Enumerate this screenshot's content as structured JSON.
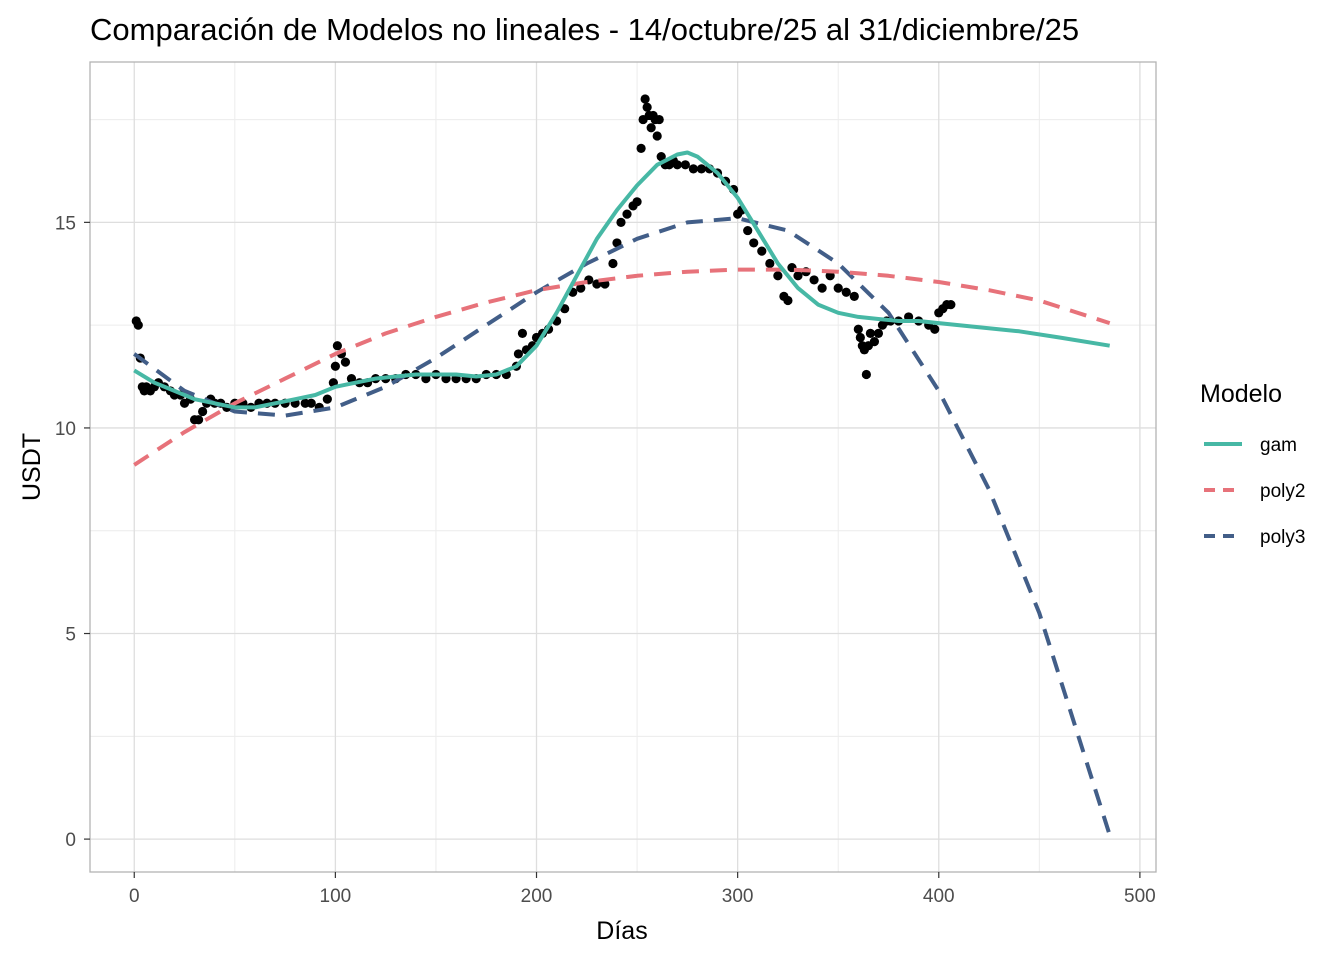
{
  "chart_data": {
    "type": "scatter",
    "title": "Comparación de Modelos no lineales - 14/octubre/25 al 31/diciembre/25",
    "xlabel": "Días",
    "ylabel": "USDT",
    "xlim": [
      -22,
      508
    ],
    "ylim": [
      -0.8,
      18.9
    ],
    "x_ticks": [
      0,
      100,
      200,
      300,
      400,
      500
    ],
    "y_ticks": [
      0,
      5,
      10,
      15
    ],
    "x_tick_labels": [
      "0",
      "100",
      "200",
      "300",
      "400",
      "500"
    ],
    "y_tick_labels": [
      "0",
      "5",
      "10",
      "15"
    ],
    "grid": true,
    "legend": {
      "title": "Modelo",
      "position": "right"
    },
    "points": {
      "color": "#000000",
      "x": [
        1,
        2,
        3,
        4,
        5,
        6,
        8,
        10,
        12,
        15,
        18,
        20,
        23,
        25,
        28,
        30,
        32,
        34,
        36,
        38,
        40,
        43,
        46,
        50,
        54,
        58,
        62,
        66,
        70,
        75,
        80,
        85,
        88,
        92,
        96,
        99,
        100,
        101,
        103,
        105,
        108,
        112,
        116,
        120,
        125,
        130,
        135,
        140,
        145,
        150,
        155,
        160,
        165,
        170,
        175,
        180,
        185,
        190,
        191,
        193,
        195,
        198,
        200,
        203,
        206,
        210,
        214,
        218,
        222,
        226,
        230,
        234,
        238,
        240,
        242,
        245,
        248,
        250,
        252,
        253,
        254,
        255,
        256,
        257,
        258,
        259,
        260,
        261,
        262,
        264,
        266,
        268,
        270,
        274,
        278,
        282,
        286,
        290,
        294,
        298,
        300,
        302,
        305,
        308,
        312,
        316,
        320,
        323,
        325,
        327,
        330,
        334,
        338,
        342,
        346,
        350,
        354,
        358,
        360,
        361,
        362,
        363,
        364,
        365,
        366,
        368,
        370,
        372,
        374,
        376,
        380,
        385,
        390,
        395,
        398,
        400,
        402,
        404,
        406
      ],
      "y": [
        12.6,
        12.5,
        11.7,
        11.0,
        10.9,
        11.0,
        10.9,
        11.0,
        11.1,
        11.0,
        10.9,
        10.8,
        10.8,
        10.6,
        10.7,
        10.2,
        10.2,
        10.4,
        10.6,
        10.7,
        10.6,
        10.6,
        10.5,
        10.6,
        10.6,
        10.5,
        10.6,
        10.6,
        10.6,
        10.6,
        10.6,
        10.6,
        10.6,
        10.5,
        10.7,
        11.1,
        11.5,
        12.0,
        11.8,
        11.6,
        11.2,
        11.1,
        11.1,
        11.2,
        11.2,
        11.2,
        11.3,
        11.3,
        11.2,
        11.3,
        11.2,
        11.2,
        11.2,
        11.2,
        11.3,
        11.3,
        11.3,
        11.5,
        11.8,
        12.3,
        11.9,
        12.0,
        12.2,
        12.3,
        12.4,
        12.6,
        12.9,
        13.3,
        13.4,
        13.6,
        13.5,
        13.5,
        14.0,
        14.5,
        15.0,
        15.2,
        15.4,
        15.5,
        16.8,
        17.5,
        18.0,
        17.8,
        17.6,
        17.3,
        17.6,
        17.5,
        17.1,
        17.5,
        16.6,
        16.4,
        16.4,
        16.5,
        16.4,
        16.4,
        16.3,
        16.3,
        16.3,
        16.2,
        16.0,
        15.8,
        15.2,
        15.3,
        14.8,
        14.5,
        14.3,
        14.0,
        13.7,
        13.2,
        13.1,
        13.9,
        13.7,
        13.8,
        13.6,
        13.4,
        13.7,
        13.4,
        13.3,
        13.2,
        12.4,
        12.2,
        12.0,
        11.9,
        11.3,
        12.0,
        12.3,
        12.1,
        12.3,
        12.5,
        12.6,
        12.6,
        12.6,
        12.7,
        12.6,
        12.5,
        12.4,
        12.8,
        12.9,
        13.0,
        13.0
      ]
    },
    "series": [
      {
        "name": "gam",
        "color": "#47b8a5",
        "dash": "solid",
        "x": [
          0,
          10,
          20,
          30,
          40,
          50,
          60,
          70,
          80,
          90,
          100,
          110,
          120,
          130,
          140,
          150,
          160,
          170,
          180,
          190,
          200,
          210,
          220,
          230,
          240,
          250,
          260,
          270,
          275,
          280,
          290,
          300,
          310,
          320,
          330,
          340,
          350,
          360,
          370,
          380,
          390,
          400,
          420,
          440,
          460,
          485
        ],
        "y": [
          11.4,
          11.1,
          10.9,
          10.7,
          10.6,
          10.5,
          10.5,
          10.6,
          10.7,
          10.8,
          11.0,
          11.1,
          11.2,
          11.25,
          11.3,
          11.3,
          11.3,
          11.25,
          11.3,
          11.5,
          12.0,
          12.8,
          13.7,
          14.6,
          15.3,
          15.9,
          16.4,
          16.65,
          16.7,
          16.6,
          16.2,
          15.6,
          14.8,
          14.0,
          13.4,
          13.0,
          12.8,
          12.7,
          12.65,
          12.6,
          12.6,
          12.55,
          12.45,
          12.35,
          12.2,
          12.0
        ]
      },
      {
        "name": "poly2",
        "color": "#e7727a",
        "dash": "dashed",
        "x": [
          0,
          25,
          50,
          75,
          100,
          125,
          150,
          175,
          200,
          225,
          250,
          275,
          300,
          325,
          350,
          375,
          400,
          425,
          450,
          485
        ],
        "y": [
          9.1,
          9.9,
          10.6,
          11.2,
          11.8,
          12.3,
          12.7,
          13.05,
          13.35,
          13.55,
          13.7,
          13.8,
          13.85,
          13.85,
          13.8,
          13.7,
          13.55,
          13.35,
          13.1,
          12.55
        ]
      },
      {
        "name": "poly3",
        "color": "#425e88",
        "dash": "dashed",
        "x": [
          0,
          25,
          50,
          75,
          100,
          125,
          150,
          175,
          200,
          225,
          250,
          275,
          300,
          325,
          350,
          375,
          400,
          425,
          450,
          485
        ],
        "y": [
          11.8,
          10.9,
          10.4,
          10.3,
          10.5,
          11.0,
          11.7,
          12.5,
          13.3,
          14.0,
          14.6,
          15.0,
          15.1,
          14.8,
          14.0,
          12.8,
          10.9,
          8.5,
          5.5,
          0.1
        ]
      }
    ]
  }
}
